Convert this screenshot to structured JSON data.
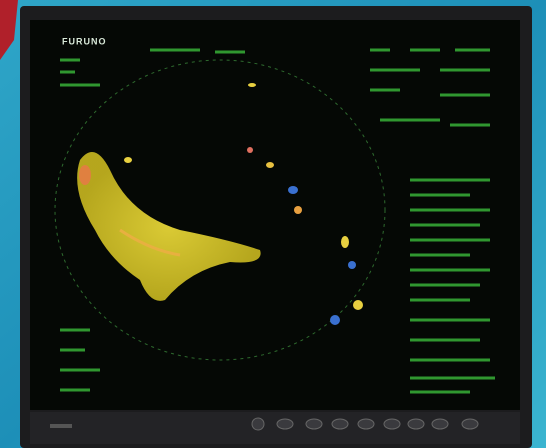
{
  "screen": {
    "brand": "FURUNO"
  }
}
